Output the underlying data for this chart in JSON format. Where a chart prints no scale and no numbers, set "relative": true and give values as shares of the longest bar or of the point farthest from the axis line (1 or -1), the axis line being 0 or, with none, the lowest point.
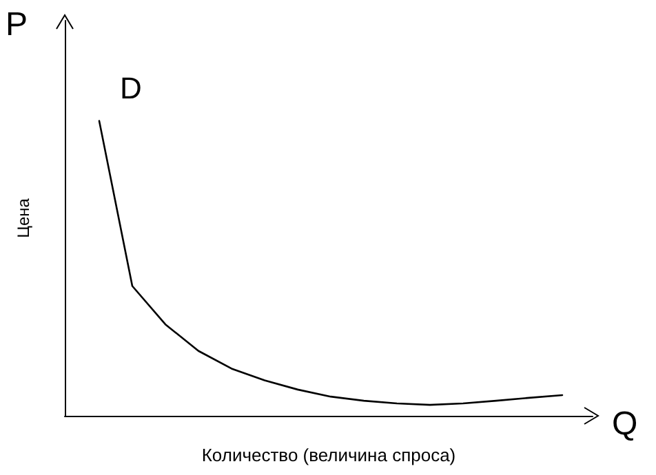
{
  "chart_data": {
    "type": "line",
    "relative": true,
    "xlabel": "Количество (величина спроса)",
    "ylabel": "Цена",
    "annotations": [
      "P",
      "Q"
    ],
    "grid": false,
    "legend": false,
    "marker": "none",
    "line_style": "solid",
    "categories": [
      null,
      null,
      null,
      null,
      null,
      null,
      null,
      null,
      null,
      null,
      null,
      null,
      null,
      null,
      null
    ],
    "series": [
      {
        "name": "D",
        "color": "#000000",
        "values": [
          1,
          0.44,
          0.31,
          0.22,
          0.16,
          0.12,
          0.089,
          0.065,
          0.051,
          0.042,
          0.037,
          0.042,
          0.051,
          0.061,
          0.07
        ]
      }
    ]
  }
}
